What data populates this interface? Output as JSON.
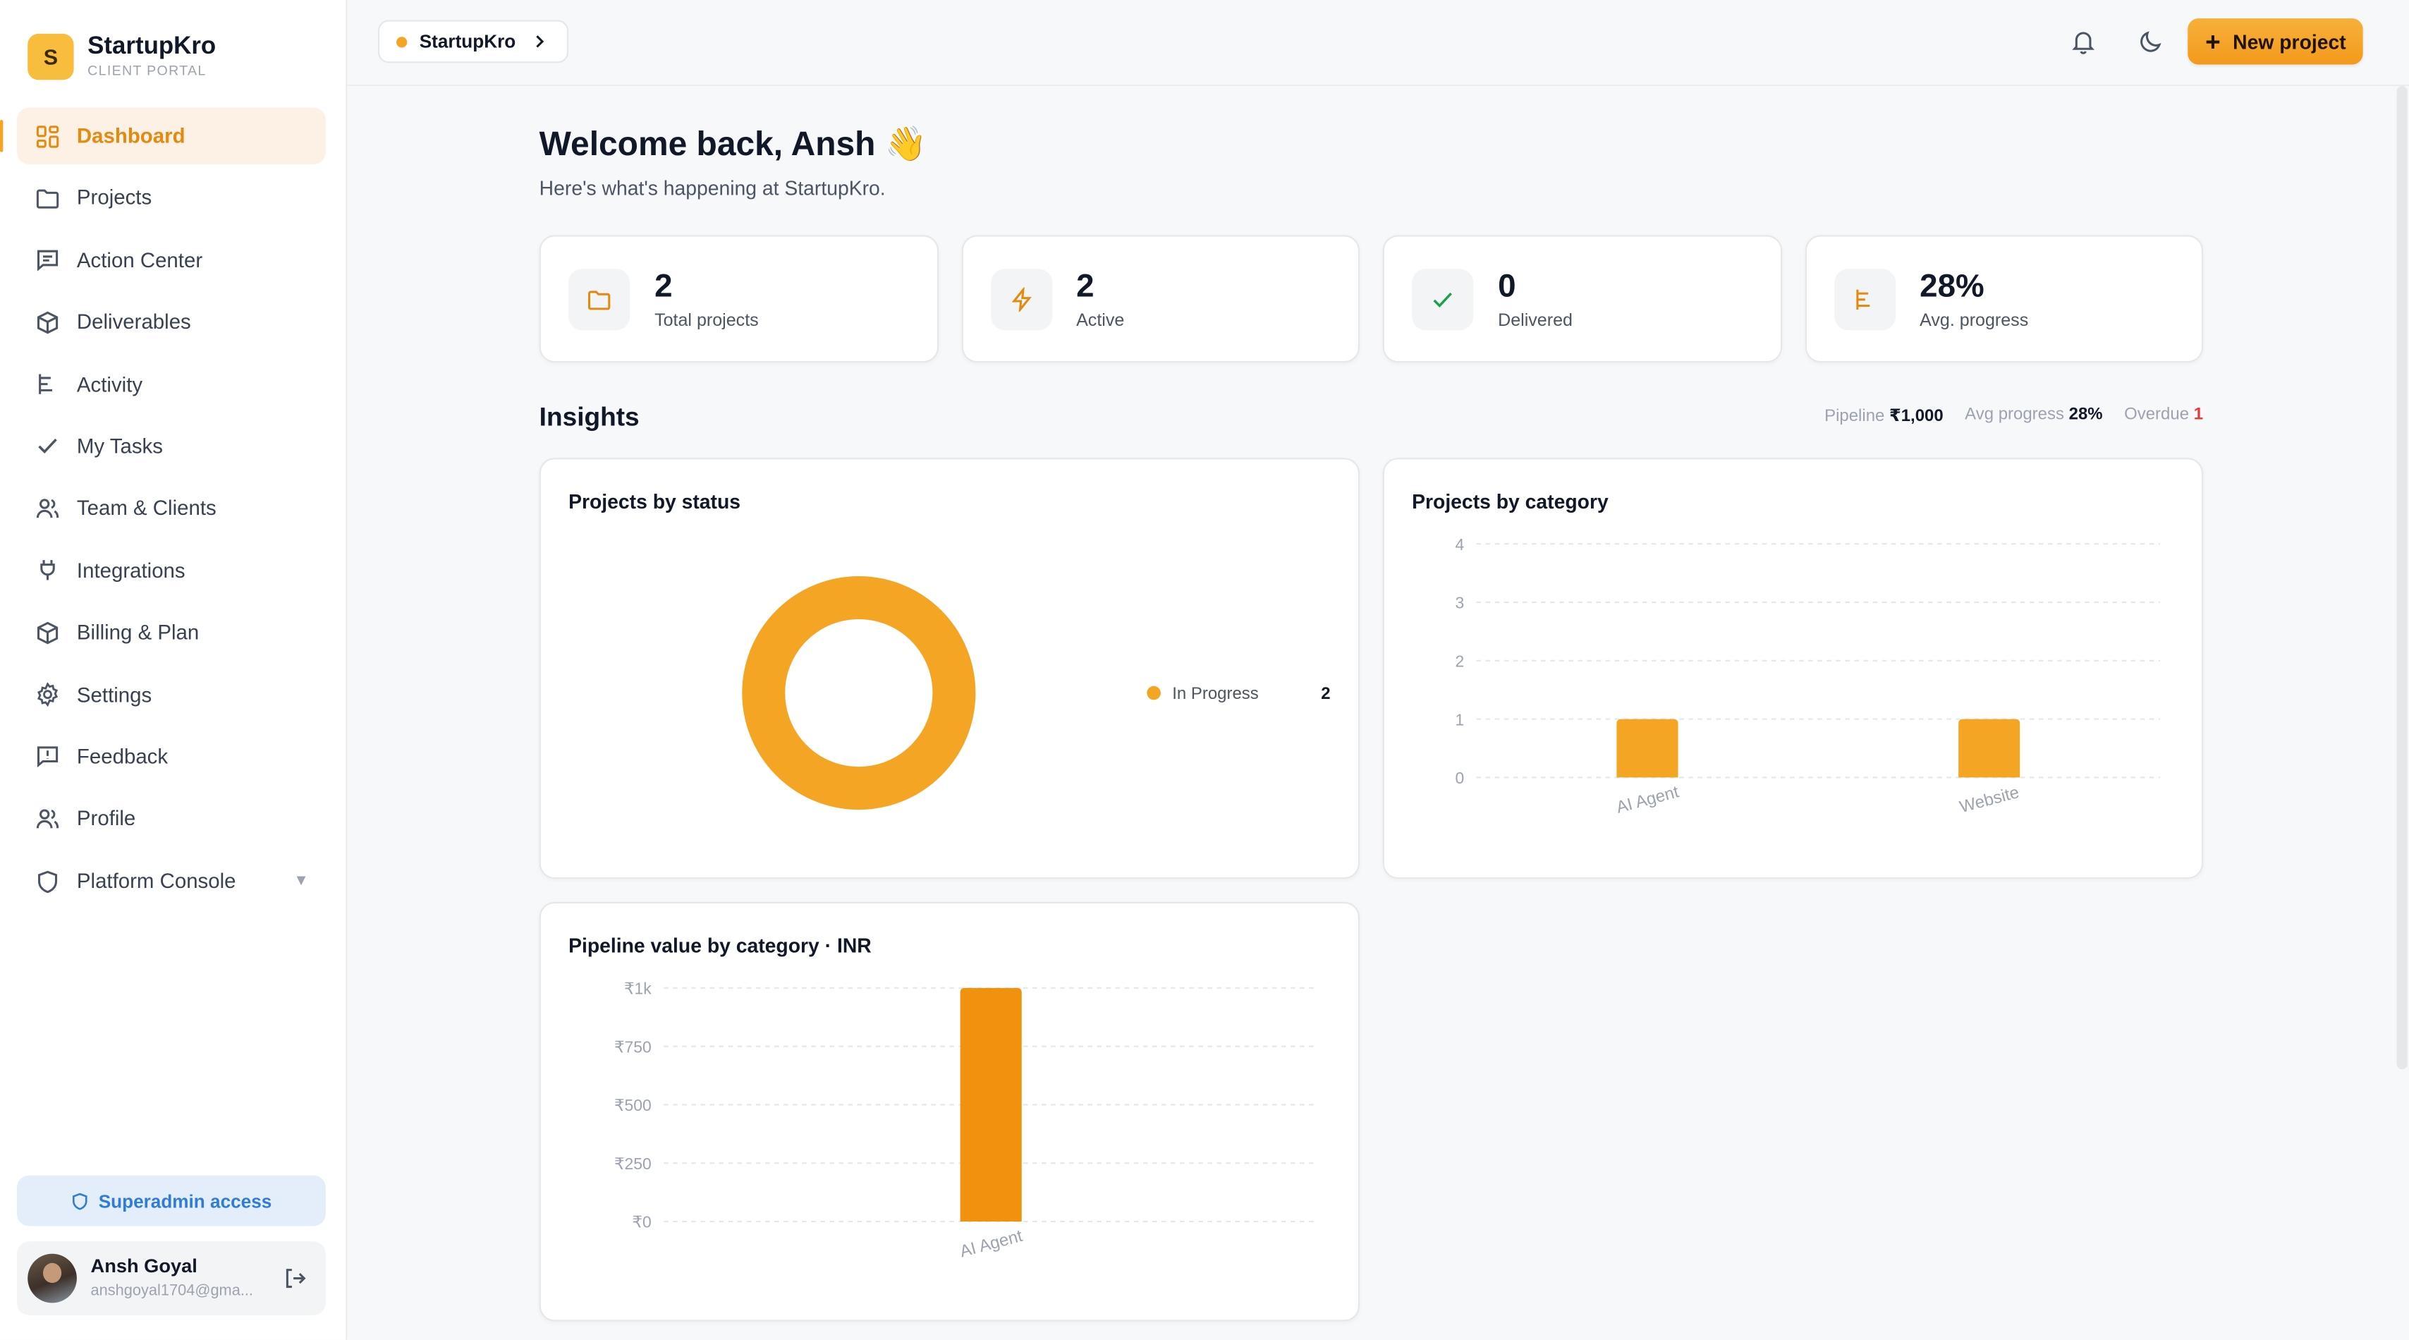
{
  "brand": {
    "initial": "S",
    "name": "StartupKro",
    "subtitle": "CLIENT PORTAL"
  },
  "sidebar": {
    "items": [
      {
        "label": "Dashboard",
        "icon": "dashboard-icon",
        "active": true
      },
      {
        "label": "Projects",
        "icon": "folder-icon"
      },
      {
        "label": "Action Center",
        "icon": "message-icon"
      },
      {
        "label": "Deliverables",
        "icon": "box-icon"
      },
      {
        "label": "Activity",
        "icon": "activity-icon"
      },
      {
        "label": "My Tasks",
        "icon": "check-icon"
      },
      {
        "label": "Team & Clients",
        "icon": "users-icon"
      },
      {
        "label": "Integrations",
        "icon": "plug-icon"
      },
      {
        "label": "Billing & Plan",
        "icon": "billing-icon"
      },
      {
        "label": "Settings",
        "icon": "gear-icon"
      },
      {
        "label": "Feedback",
        "icon": "feedback-icon"
      },
      {
        "label": "Profile",
        "icon": "profile-icon"
      }
    ],
    "console_label": "Platform Console",
    "superadmin_label": "Superadmin access",
    "user": {
      "name": "Ansh Goyal",
      "email": "anshgoyal1704@gma..."
    }
  },
  "topbar": {
    "workspace": "StartupKro",
    "new_project_label": "New project",
    "accent": "#f5a524"
  },
  "welcome": {
    "title": "Welcome back, Ansh 👋",
    "subtitle": "Here's what's happening at StartupKro."
  },
  "stats": [
    {
      "value": "2",
      "label": "Total projects",
      "icon": "folder-icon"
    },
    {
      "value": "2",
      "label": "Active",
      "icon": "bolt-icon"
    },
    {
      "value": "0",
      "label": "Delivered",
      "icon": "check-icon"
    },
    {
      "value": "28%",
      "label": "Avg. progress",
      "icon": "progress-icon"
    }
  ],
  "insights": {
    "title": "Insights",
    "pipeline_label": "Pipeline",
    "pipeline_value": "₹1,000",
    "avg_label": "Avg progress",
    "avg_value": "28%",
    "overdue_label": "Overdue",
    "overdue_value": "1"
  },
  "chart_data": [
    {
      "type": "pie",
      "title": "Projects by status",
      "categories": [
        "In Progress"
      ],
      "values": [
        2
      ],
      "colors": [
        "#f5a524"
      ],
      "legend": "right"
    },
    {
      "type": "bar",
      "title": "Projects by category",
      "categories": [
        "AI Agent",
        "Website"
      ],
      "values": [
        1,
        1
      ],
      "ylim": [
        0,
        4
      ],
      "yticks": [
        "0",
        "1",
        "2",
        "3",
        "4"
      ],
      "grid": true,
      "color": "#f5a524"
    },
    {
      "type": "bar",
      "title": "Pipeline value by category · INR",
      "categories": [
        "AI Agent"
      ],
      "values": [
        1000
      ],
      "ylim": [
        0,
        1000
      ],
      "yticks": [
        "₹0",
        "₹250",
        "₹500",
        "₹750",
        "₹1k"
      ],
      "grid": true,
      "color": "#f0920e"
    }
  ]
}
